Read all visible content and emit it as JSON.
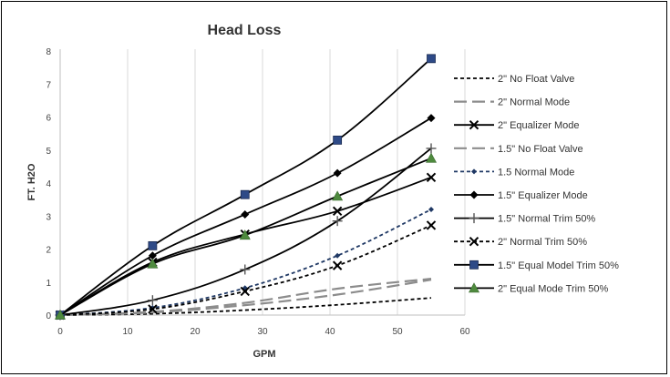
{
  "chart_data": {
    "type": "line",
    "title": "Head Loss",
    "xlabel": "GPM",
    "ylabel": "FT. H2O",
    "xlim": [
      0,
      60
    ],
    "ylim": [
      0,
      8
    ],
    "xticks": [
      0,
      10,
      20,
      30,
      40,
      50,
      60
    ],
    "yticks": [
      0,
      1,
      2,
      3,
      4,
      5,
      6,
      7,
      8
    ],
    "grid": "vertical major gridlines",
    "legend_position": "right",
    "series": [
      {
        "name": "2\" No Float Valve",
        "x": [
          0,
          13.7,
          27.4,
          41.1,
          55
        ],
        "y": [
          0,
          0.04,
          0.15,
          0.31,
          0.52
        ],
        "color": "#000000",
        "line": "short-dash",
        "marker": "none"
      },
      {
        "name": "2\" Normal Mode",
        "x": [
          0,
          13.7,
          27.4,
          41.1,
          55
        ],
        "y": [
          0,
          0.08,
          0.3,
          0.62,
          1.07
        ],
        "color": "#8c8c8c",
        "line": "long-dash",
        "marker": "none"
      },
      {
        "name": "2\" Equalizer Mode",
        "x": [
          0,
          13.7,
          27.4,
          41.1,
          55
        ],
        "y": [
          0,
          1.6,
          2.45,
          3.15,
          4.17
        ],
        "color": "#000000",
        "line": "solid",
        "marker": "x"
      },
      {
        "name": "1.5\" No Float Valve",
        "x": [
          0,
          13.7,
          27.4,
          41.1,
          55
        ],
        "y": [
          0,
          0.1,
          0.37,
          0.8,
          1.1
        ],
        "color": "#8c8c8c",
        "line": "long-dash",
        "marker": "none"
      },
      {
        "name": "1.5 Normal Mode",
        "x": [
          0,
          13.7,
          27.4,
          41.1,
          55
        ],
        "y": [
          0,
          0.22,
          0.82,
          1.8,
          3.2
        ],
        "color": "#1f3864",
        "line": "short-dash",
        "marker": "diamond-small"
      },
      {
        "name": "1.5\" Equalizer Mode",
        "x": [
          0,
          13.7,
          27.4,
          41.1,
          55
        ],
        "y": [
          0,
          1.8,
          3.05,
          4.3,
          5.97
        ],
        "color": "#000000",
        "line": "solid",
        "marker": "diamond"
      },
      {
        "name": "1.5\" Normal Trim 50%",
        "x": [
          0,
          13.7,
          27.4,
          41.1,
          55
        ],
        "y": [
          0,
          0.45,
          1.38,
          2.85,
          5.05
        ],
        "color": "#000000",
        "line": "solid",
        "marker": "plus"
      },
      {
        "name": "2\" Normal Trim 50%",
        "x": [
          0,
          13.7,
          27.4,
          41.1,
          55
        ],
        "y": [
          0,
          0.18,
          0.72,
          1.5,
          2.72
        ],
        "color": "#000000",
        "line": "short-dash",
        "marker": "x"
      },
      {
        "name": "1.5\" Equal Model Trim 50%",
        "x": [
          0,
          13.7,
          27.4,
          41.1,
          55
        ],
        "y": [
          0,
          2.1,
          3.65,
          5.3,
          7.77
        ],
        "color": "#2e4a87",
        "line": "solid",
        "marker": "square"
      },
      {
        "name": "2\" Equal Mode Trim 50%",
        "x": [
          0,
          13.7,
          27.4,
          41.1,
          55
        ],
        "y": [
          0,
          1.55,
          2.42,
          3.6,
          4.75
        ],
        "color": "#4e8a3e",
        "line": "solid",
        "marker": "triangle"
      }
    ]
  }
}
